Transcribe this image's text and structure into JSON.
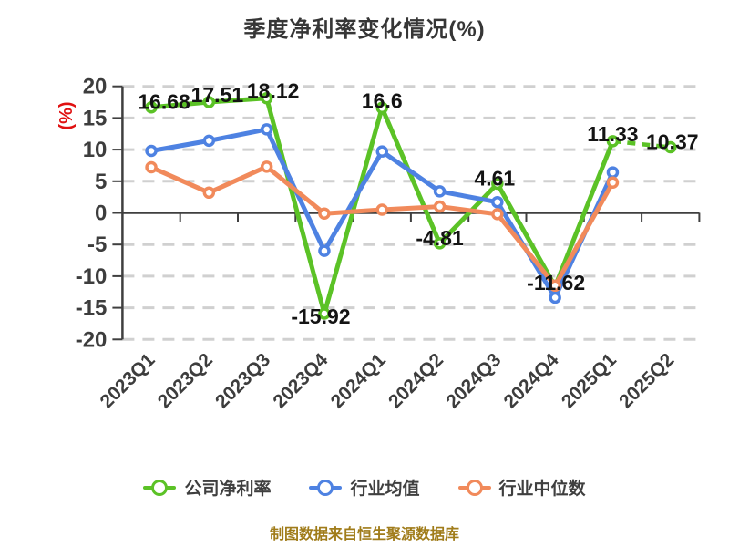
{
  "title": "季度净利率变化情况(%)",
  "footer": "制图数据来自恒生聚源数据库",
  "colors": {
    "company_series": "#5BC226",
    "industry_mean_series": "#4E82E2",
    "industry_median_series": "#F18A5B",
    "grid": "#d0d0d0",
    "axis": "#3f3f3f",
    "title_text": "#363636",
    "tick_text": "#3d3d3d",
    "unit_label": "#e01111",
    "data_label": "#141414",
    "footer_text": "#a07c1a"
  },
  "chart_data": {
    "type": "line",
    "title": "季度净利率变化情况(%)",
    "categories": [
      "2023Q1",
      "2023Q2",
      "2023Q3",
      "2023Q4",
      "2024Q1",
      "2024Q2",
      "2024Q3",
      "2024Q4",
      "2025Q1",
      "2025Q2"
    ],
    "series": [
      {
        "key": "company-net-margin",
        "name": "公司净利率",
        "color": "#5BC226",
        "values": [
          16.68,
          17.51,
          18.12,
          -15.92,
          16.6,
          -4.81,
          4.61,
          -11.62,
          11.33,
          10.37
        ],
        "point_labels": [
          "16.68",
          "17.51",
          "18.12",
          "-15.92",
          "16.6",
          "-4.81",
          "4.61",
          "-11.62",
          "11.33",
          "10.37"
        ],
        "last_segment_dashed": true
      },
      {
        "key": "industry-mean",
        "name": "行业均值",
        "color": "#4E82E2",
        "values": [
          9.8,
          11.4,
          13.2,
          -6.0,
          9.7,
          3.4,
          1.7,
          -13.4,
          6.4,
          null
        ],
        "point_labels": null,
        "last_segment_dashed": false
      },
      {
        "key": "industry-median",
        "name": "行业中位数",
        "color": "#F18A5B",
        "values": [
          7.2,
          3.2,
          7.3,
          -0.1,
          0.5,
          1.0,
          -0.2,
          -11.5,
          4.8,
          null
        ],
        "point_labels": null,
        "last_segment_dashed": false
      }
    ],
    "xlabel": "",
    "ylabel": "(%)",
    "ylim": [
      -20,
      20
    ],
    "y_ticks": [
      20,
      15,
      10,
      5,
      0,
      -5,
      -10,
      -15,
      -20
    ],
    "grid": "horizontal-dashed",
    "legend_position": "bottom"
  }
}
